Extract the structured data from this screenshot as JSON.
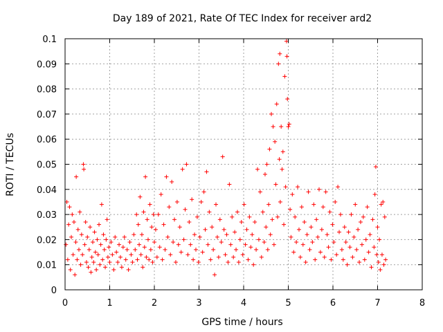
{
  "chart_data": {
    "type": "scatter",
    "title": "Day 189 of 2021, Rate Of TEC Index for receiver ard2",
    "xlabel": "GPS time / hours",
    "ylabel": "ROTI / TECUs",
    "xlim": [
      0,
      8
    ],
    "ylim": [
      0,
      0.1
    ],
    "xticks": [
      0,
      1,
      2,
      3,
      4,
      5,
      6,
      7,
      8
    ],
    "yticks": [
      0,
      0.01,
      0.02,
      0.03,
      0.04,
      0.05,
      0.06,
      0.07,
      0.08,
      0.09,
      0.1
    ],
    "xtick_labels": [
      "0",
      "1",
      "2",
      "3",
      "4",
      "5",
      "6",
      "7",
      "8"
    ],
    "ytick_labels": [
      "0",
      "0.01",
      "0.02",
      "0.03",
      "0.04",
      "0.05",
      "0.06",
      "0.07",
      "0.08",
      "0.09",
      "0.1"
    ],
    "grid": true,
    "marker": "+",
    "series": [
      {
        "name": "ard2",
        "color": "#ff0000",
        "points": [
          [
            0.02,
            0.018
          ],
          [
            0.04,
            0.035
          ],
          [
            0.06,
            0.012
          ],
          [
            0.08,
            0.026
          ],
          [
            0.1,
            0.033
          ],
          [
            0.12,
            0.008
          ],
          [
            0.14,
            0.021
          ],
          [
            0.16,
            0.03
          ],
          [
            0.18,
            0.014
          ],
          [
            0.2,
            0.027
          ],
          [
            0.22,
            0.006
          ],
          [
            0.24,
            0.019
          ],
          [
            0.25,
            0.045
          ],
          [
            0.27,
            0.012
          ],
          [
            0.29,
            0.024
          ],
          [
            0.31,
            0.016
          ],
          [
            0.33,
            0.031
          ],
          [
            0.35,
            0.01
          ],
          [
            0.37,
            0.022
          ],
          [
            0.39,
            0.014
          ],
          [
            0.41,
            0.05
          ],
          [
            0.42,
            0.048
          ],
          [
            0.44,
            0.018
          ],
          [
            0.46,
            0.027
          ],
          [
            0.48,
            0.011
          ],
          [
            0.5,
            0.021
          ],
          [
            0.52,
            0.009
          ],
          [
            0.54,
            0.016
          ],
          [
            0.56,
            0.025
          ],
          [
            0.58,
            0.007
          ],
          [
            0.6,
            0.013
          ],
          [
            0.62,
            0.019
          ],
          [
            0.64,
            0.011
          ],
          [
            0.66,
            0.023
          ],
          [
            0.68,
            0.015
          ],
          [
            0.7,
            0.008
          ],
          [
            0.72,
            0.02
          ],
          [
            0.74,
            0.014
          ],
          [
            0.76,
            0.026
          ],
          [
            0.78,
            0.01
          ],
          [
            0.8,
            0.018
          ],
          [
            0.82,
            0.034
          ],
          [
            0.84,
            0.012
          ],
          [
            0.86,
            0.022
          ],
          [
            0.88,
            0.016
          ],
          [
            0.9,
            0.009
          ],
          [
            0.92,
            0.02
          ],
          [
            0.94,
            0.028
          ],
          [
            0.96,
            0.013
          ],
          [
            0.98,
            0.017
          ],
          [
            1.0,
            0.011
          ],
          [
            1.03,
            0.019
          ],
          [
            1.06,
            0.014
          ],
          [
            1.09,
            0.008
          ],
          [
            1.12,
            0.021
          ],
          [
            1.15,
            0.015
          ],
          [
            1.18,
            0.011
          ],
          [
            1.21,
            0.018
          ],
          [
            1.24,
            0.013
          ],
          [
            1.27,
            0.009
          ],
          [
            1.3,
            0.017
          ],
          [
            1.33,
            0.021
          ],
          [
            1.36,
            0.012
          ],
          [
            1.39,
            0.016
          ],
          [
            1.42,
            0.008
          ],
          [
            1.45,
            0.019
          ],
          [
            1.48,
            0.014
          ],
          [
            1.51,
            0.011
          ],
          [
            1.54,
            0.022
          ],
          [
            1.57,
            0.016
          ],
          [
            1.6,
            0.03
          ],
          [
            1.62,
            0.012
          ],
          [
            1.64,
            0.026
          ],
          [
            1.66,
            0.018
          ],
          [
            1.68,
            0.037
          ],
          [
            1.7,
            0.014
          ],
          [
            1.72,
            0.022
          ],
          [
            1.74,
            0.009
          ],
          [
            1.76,
            0.031
          ],
          [
            1.78,
            0.017
          ],
          [
            1.8,
            0.045
          ],
          [
            1.82,
            0.013
          ],
          [
            1.84,
            0.028
          ],
          [
            1.86,
            0.02
          ],
          [
            1.88,
            0.012
          ],
          [
            1.9,
            0.034
          ],
          [
            1.92,
            0.016
          ],
          [
            1.94,
            0.025
          ],
          [
            1.96,
            0.011
          ],
          [
            1.98,
            0.03
          ],
          [
            2.0,
            0.019
          ],
          [
            2.03,
            0.024
          ],
          [
            2.06,
            0.013
          ],
          [
            2.09,
            0.03
          ],
          [
            2.12,
            0.017
          ],
          [
            2.15,
            0.038
          ],
          [
            2.18,
            0.012
          ],
          [
            2.21,
            0.026
          ],
          [
            2.24,
            0.016
          ],
          [
            2.27,
            0.045
          ],
          [
            2.3,
            0.021
          ],
          [
            2.33,
            0.033
          ],
          [
            2.36,
            0.014
          ],
          [
            2.39,
            0.043
          ],
          [
            2.42,
            0.019
          ],
          [
            2.45,
            0.028
          ],
          [
            2.48,
            0.011
          ],
          [
            2.51,
            0.035
          ],
          [
            2.54,
            0.018
          ],
          [
            2.57,
            0.025
          ],
          [
            2.6,
            0.015
          ],
          [
            2.63,
            0.048
          ],
          [
            2.66,
            0.02
          ],
          [
            2.69,
            0.032
          ],
          [
            2.72,
            0.05
          ],
          [
            2.75,
            0.014
          ],
          [
            2.78,
            0.027
          ],
          [
            2.81,
            0.018
          ],
          [
            2.84,
            0.036
          ],
          [
            2.87,
            0.012
          ],
          [
            2.9,
            0.022
          ],
          [
            2.93,
            0.016
          ],
          [
            2.96,
            0.029
          ],
          [
            2.99,
            0.011
          ],
          [
            3.02,
            0.021
          ],
          [
            3.05,
            0.035
          ],
          [
            3.08,
            0.015
          ],
          [
            3.11,
            0.039
          ],
          [
            3.14,
            0.024
          ],
          [
            3.17,
            0.047
          ],
          [
            3.2,
            0.018
          ],
          [
            3.23,
            0.031
          ],
          [
            3.26,
            0.012
          ],
          [
            3.29,
            0.025
          ],
          [
            3.32,
            0.016
          ],
          [
            3.35,
            0.006
          ],
          [
            3.38,
            0.034
          ],
          [
            3.41,
            0.021
          ],
          [
            3.44,
            0.013
          ],
          [
            3.47,
            0.028
          ],
          [
            3.5,
            0.019
          ],
          [
            3.53,
            0.053
          ],
          [
            3.56,
            0.024
          ],
          [
            3.59,
            0.014
          ],
          [
            3.62,
            0.022
          ],
          [
            3.65,
            0.011
          ],
          [
            3.68,
            0.042
          ],
          [
            3.71,
            0.018
          ],
          [
            3.74,
            0.029
          ],
          [
            3.77,
            0.013
          ],
          [
            3.8,
            0.023
          ],
          [
            3.83,
            0.016
          ],
          [
            3.86,
            0.031
          ],
          [
            3.89,
            0.011
          ],
          [
            3.92,
            0.02
          ],
          [
            3.95,
            0.027
          ],
          [
            3.98,
            0.014
          ],
          [
            4.01,
            0.034
          ],
          [
            4.04,
            0.018
          ],
          [
            4.07,
            0.024
          ],
          [
            4.1,
            0.012
          ],
          [
            4.13,
            0.029
          ],
          [
            4.16,
            0.017
          ],
          [
            4.19,
            0.022
          ],
          [
            4.22,
            0.01
          ],
          [
            4.25,
            0.027
          ],
          [
            4.28,
            0.016
          ],
          [
            4.31,
            0.048
          ],
          [
            4.34,
            0.02
          ],
          [
            4.37,
            0.039
          ],
          [
            4.4,
            0.013
          ],
          [
            4.43,
            0.031
          ],
          [
            4.46,
            0.019
          ],
          [
            4.48,
            0.046
          ],
          [
            4.5,
            0.025
          ],
          [
            4.52,
            0.05
          ],
          [
            4.54,
            0.016
          ],
          [
            4.56,
            0.034
          ],
          [
            4.58,
            0.056
          ],
          [
            4.6,
            0.022
          ],
          [
            4.62,
            0.07
          ],
          [
            4.64,
            0.028
          ],
          [
            4.66,
            0.065
          ],
          [
            4.68,
            0.018
          ],
          [
            4.7,
            0.059
          ],
          [
            4.72,
            0.042
          ],
          [
            4.74,
            0.074
          ],
          [
            4.76,
            0.029
          ],
          [
            4.78,
            0.09
          ],
          [
            4.8,
            0.052
          ],
          [
            4.81,
            0.094
          ],
          [
            4.82,
            0.035
          ],
          [
            4.84,
            0.065
          ],
          [
            4.86,
            0.048
          ],
          [
            4.88,
            0.055
          ],
          [
            4.9,
            0.026
          ],
          [
            4.92,
            0.085
          ],
          [
            4.94,
            0.041
          ],
          [
            4.96,
            0.099
          ],
          [
            4.97,
            0.093
          ],
          [
            4.98,
            0.076
          ],
          [
            5.0,
            0.065
          ],
          [
            5.02,
            0.066
          ],
          [
            5.04,
            0.032
          ],
          [
            5.06,
            0.021
          ],
          [
            5.09,
            0.038
          ],
          [
            5.12,
            0.015
          ],
          [
            5.15,
            0.029
          ],
          [
            5.18,
            0.019
          ],
          [
            5.21,
            0.041
          ],
          [
            5.24,
            0.024
          ],
          [
            5.27,
            0.013
          ],
          [
            5.3,
            0.033
          ],
          [
            5.33,
            0.018
          ],
          [
            5.36,
            0.027
          ],
          [
            5.39,
            0.011
          ],
          [
            5.42,
            0.022
          ],
          [
            5.45,
            0.039
          ],
          [
            5.48,
            0.016
          ],
          [
            5.51,
            0.025
          ],
          [
            5.54,
            0.019
          ],
          [
            5.57,
            0.034
          ],
          [
            5.6,
            0.012
          ],
          [
            5.63,
            0.028
          ],
          [
            5.66,
            0.021
          ],
          [
            5.69,
            0.04
          ],
          [
            5.72,
            0.015
          ],
          [
            5.75,
            0.024
          ],
          [
            5.78,
            0.033
          ],
          [
            5.81,
            0.013
          ],
          [
            5.84,
            0.039
          ],
          [
            5.87,
            0.022
          ],
          [
            5.9,
            0.017
          ],
          [
            5.93,
            0.031
          ],
          [
            5.96,
            0.012
          ],
          [
            5.99,
            0.026
          ],
          [
            6.02,
            0.019
          ],
          [
            6.05,
            0.035
          ],
          [
            6.08,
            0.014
          ],
          [
            6.11,
            0.041
          ],
          [
            6.14,
            0.023
          ],
          [
            6.17,
            0.03
          ],
          [
            6.2,
            0.016
          ],
          [
            6.23,
            0.012
          ],
          [
            6.26,
            0.025
          ],
          [
            6.29,
            0.019
          ],
          [
            6.32,
            0.01
          ],
          [
            6.35,
            0.023
          ],
          [
            6.38,
            0.017
          ],
          [
            6.41,
            0.03
          ],
          [
            6.44,
            0.013
          ],
          [
            6.47,
            0.021
          ],
          [
            6.5,
            0.034
          ],
          [
            6.53,
            0.016
          ],
          [
            6.56,
            0.024
          ],
          [
            6.59,
            0.011
          ],
          [
            6.62,
            0.027
          ],
          [
            6.65,
            0.018
          ],
          [
            6.68,
            0.029
          ],
          [
            6.71,
            0.012
          ],
          [
            6.74,
            0.02
          ],
          [
            6.77,
            0.033
          ],
          [
            6.8,
            0.015
          ],
          [
            6.83,
            0.022
          ],
          [
            6.86,
            0.009
          ],
          [
            6.89,
            0.028
          ],
          [
            6.92,
            0.017
          ],
          [
            6.94,
            0.038
          ],
          [
            6.96,
            0.049
          ],
          [
            6.98,
            0.014
          ],
          [
            7.0,
            0.025
          ],
          [
            7.02,
            0.011
          ],
          [
            7.04,
            0.02
          ],
          [
            7.06,
            0.008
          ],
          [
            7.08,
            0.034
          ],
          [
            7.1,
            0.014
          ],
          [
            7.12,
            0.035
          ],
          [
            7.14,
            0.01
          ],
          [
            7.16,
            0.029
          ],
          [
            7.18,
            0.012
          ]
        ]
      }
    ]
  }
}
